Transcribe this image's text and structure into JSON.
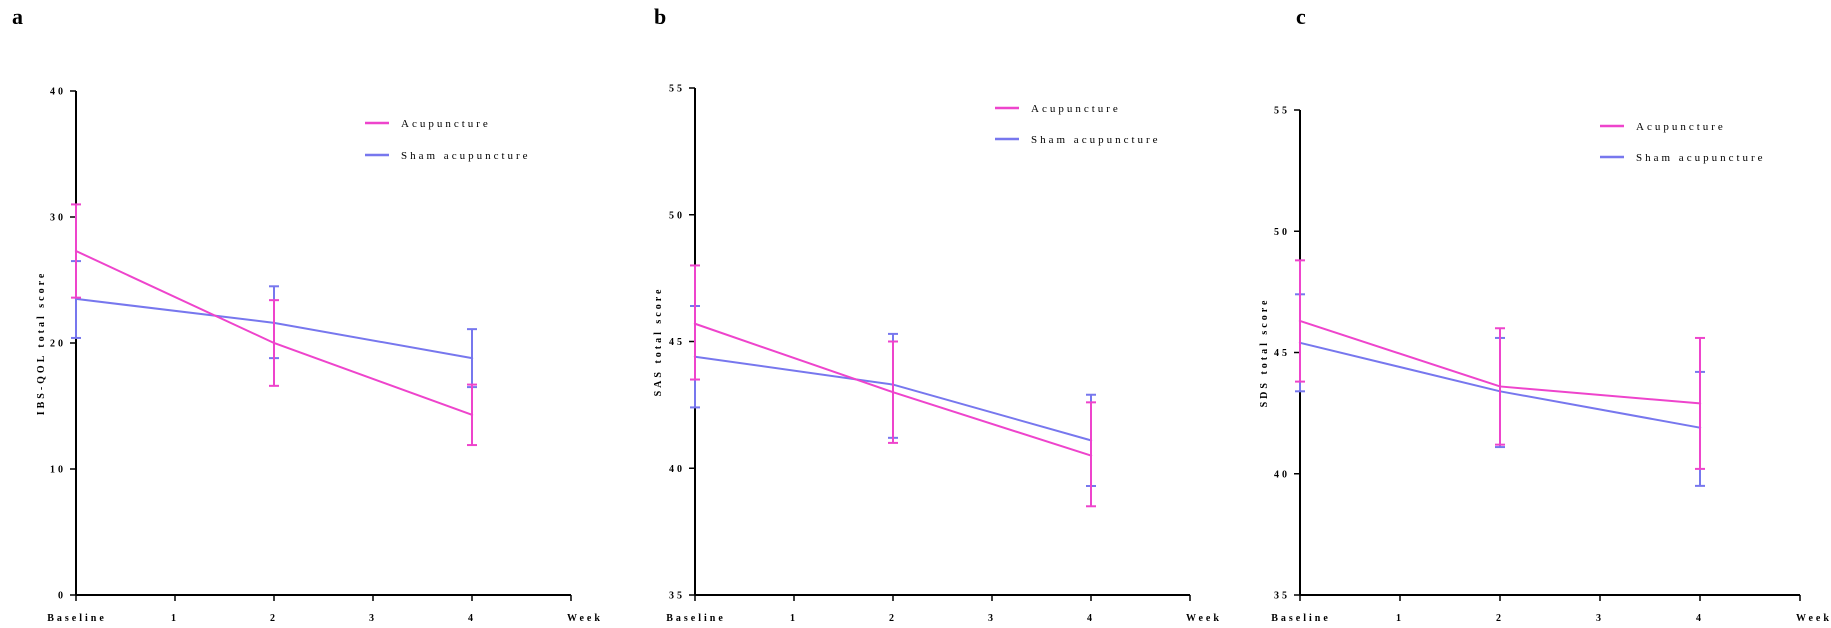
{
  "colors": {
    "acupuncture": "#ee44cc",
    "sham": "#7777ee",
    "axis": "#000000"
  },
  "chart_data": [
    {
      "panel": "a",
      "type": "line",
      "title": "",
      "xlabel": "Week",
      "ylabel": "IBS-QOL total score",
      "x_ticks": [
        "Baseline",
        "1",
        "2",
        "3",
        "4"
      ],
      "x_values": [
        0,
        1,
        2,
        3,
        4
      ],
      "xlim": [
        0,
        5
      ],
      "ylim": [
        0,
        40
      ],
      "y_ticks": [
        "0",
        "10",
        "20",
        "30",
        "40"
      ],
      "legend_position": "top-right",
      "series": [
        {
          "name": "Acupuncture",
          "color": "#ee44cc",
          "x": [
            0,
            2,
            4
          ],
          "y": [
            27.3,
            20.0,
            14.3
          ],
          "err_low": [
            23.6,
            16.6,
            11.9
          ],
          "err_high": [
            31.0,
            23.4,
            16.7
          ]
        },
        {
          "name": "Sham acupuncture",
          "color": "#7777ee",
          "x": [
            0,
            2,
            4
          ],
          "y": [
            23.5,
            21.6,
            18.8
          ],
          "err_low": [
            20.4,
            18.8,
            16.5
          ],
          "err_high": [
            26.5,
            24.5,
            21.1
          ]
        }
      ]
    },
    {
      "panel": "b",
      "type": "line",
      "title": "",
      "xlabel": "Week",
      "ylabel": "SAS total score",
      "x_ticks": [
        "Baseline",
        "1",
        "2",
        "3",
        "4"
      ],
      "x_values": [
        0,
        1,
        2,
        3,
        4
      ],
      "xlim": [
        0,
        5
      ],
      "ylim": [
        35,
        55
      ],
      "y_ticks": [
        "35",
        "40",
        "45",
        "50",
        "55"
      ],
      "legend_position": "top-right",
      "series": [
        {
          "name": "Acupuncture",
          "color": "#ee44cc",
          "x": [
            0,
            2,
            4
          ],
          "y": [
            45.7,
            43.0,
            40.5
          ],
          "err_low": [
            43.5,
            41.0,
            38.5
          ],
          "err_high": [
            48.0,
            45.0,
            42.6
          ]
        },
        {
          "name": "Sham acupuncture",
          "color": "#7777ee",
          "x": [
            0,
            2,
            4
          ],
          "y": [
            44.4,
            43.3,
            41.1
          ],
          "err_low": [
            42.4,
            41.2,
            39.3
          ],
          "err_high": [
            46.4,
            45.3,
            42.9
          ]
        }
      ]
    },
    {
      "panel": "c",
      "type": "line",
      "title": "",
      "xlabel": "Week",
      "ylabel": "SDS total score",
      "x_ticks": [
        "Baseline",
        "1",
        "2",
        "3",
        "4"
      ],
      "x_values": [
        0,
        1,
        2,
        3,
        4
      ],
      "xlim": [
        0,
        5
      ],
      "ylim": [
        35,
        55
      ],
      "y_ticks": [
        "35",
        "40",
        "45",
        "50",
        "55"
      ],
      "legend_position": "top-right",
      "series": [
        {
          "name": "Acupuncture",
          "color": "#ee44cc",
          "x": [
            0,
            2,
            4
          ],
          "y": [
            46.3,
            43.6,
            42.9
          ],
          "err_low": [
            43.8,
            41.2,
            40.2
          ],
          "err_high": [
            48.8,
            46.0,
            45.6
          ]
        },
        {
          "name": "Sham acupuncture",
          "color": "#7777ee",
          "x": [
            0,
            2,
            4
          ],
          "y": [
            45.4,
            43.4,
            41.9
          ],
          "err_low": [
            43.4,
            41.1,
            39.5
          ],
          "err_high": [
            47.4,
            45.6,
            44.2
          ]
        }
      ]
    }
  ]
}
